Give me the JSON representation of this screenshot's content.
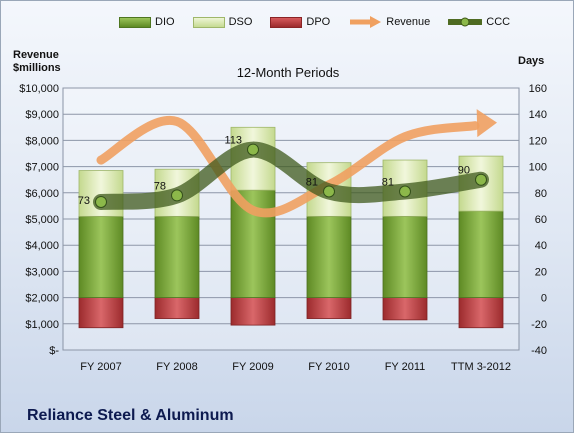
{
  "chart_data": {
    "type": "bar",
    "title": "12-Month Periods",
    "company": "Reliance Steel & Aluminum",
    "categories": [
      "FY 2007",
      "FY 2008",
      "FY 2009",
      "FY 2010",
      "FY 2011",
      "TTM 3-2012"
    ],
    "left_axis": {
      "label_line1": "Revenue",
      "label_line2": "$millions",
      "range": [
        0,
        10000
      ],
      "ticks": [
        0,
        1000,
        2000,
        3000,
        4000,
        5000,
        6000,
        7000,
        8000,
        9000,
        10000
      ],
      "tick_labels": [
        "$-",
        "$1,000",
        "$2,000",
        "$3,000",
        "$4,000",
        "$5,000",
        "$6,000",
        "$7,000",
        "$8,000",
        "$9,000",
        "$10,000"
      ]
    },
    "right_axis": {
      "label": "Days",
      "range": [
        -40,
        160
      ],
      "ticks": [
        -40,
        -20,
        0,
        20,
        40,
        60,
        80,
        100,
        120,
        140,
        160
      ],
      "tick_labels": [
        "-40",
        "-20",
        "0",
        "20",
        "40",
        "60",
        "80",
        "100",
        "120",
        "140",
        "160"
      ]
    },
    "series": [
      {
        "name": "DIO",
        "axis": "right",
        "kind": "stacked-bar",
        "color": "#6e9a2e",
        "values": [
          62,
          62,
          82,
          62,
          62,
          66
        ]
      },
      {
        "name": "DSO",
        "axis": "right",
        "kind": "stacked-bar",
        "color": "#d2e3a4",
        "values": [
          35,
          36,
          48,
          41,
          43,
          42
        ]
      },
      {
        "name": "DPO",
        "axis": "right",
        "kind": "negative-bar",
        "color": "#b5393b",
        "values": [
          -23,
          -16,
          -21,
          -16,
          -17,
          -23
        ]
      },
      {
        "name": "Revenue",
        "axis": "left",
        "kind": "arrow-line",
        "color": "#f0a060",
        "values": [
          7250,
          8720,
          5330,
          6310,
          8140,
          8600
        ]
      },
      {
        "name": "CCC",
        "axis": "right",
        "kind": "smooth-line",
        "color": "#5a7a2a",
        "values": [
          73,
          78,
          113,
          81,
          81,
          90
        ]
      }
    ],
    "ccc_labels": [
      "73",
      "78",
      "113",
      "81",
      "81",
      "90"
    ],
    "grid": true,
    "legend_position": "top"
  },
  "legend": [
    {
      "label": "DIO",
      "color": "#6e9a2e"
    },
    {
      "label": "DSO",
      "color": "#d2e3a4"
    },
    {
      "label": "DPO",
      "color": "#b5393b"
    },
    {
      "label": "Revenue",
      "color": "#f0a060"
    },
    {
      "label": "CCC",
      "color": "#4f6b22"
    }
  ]
}
